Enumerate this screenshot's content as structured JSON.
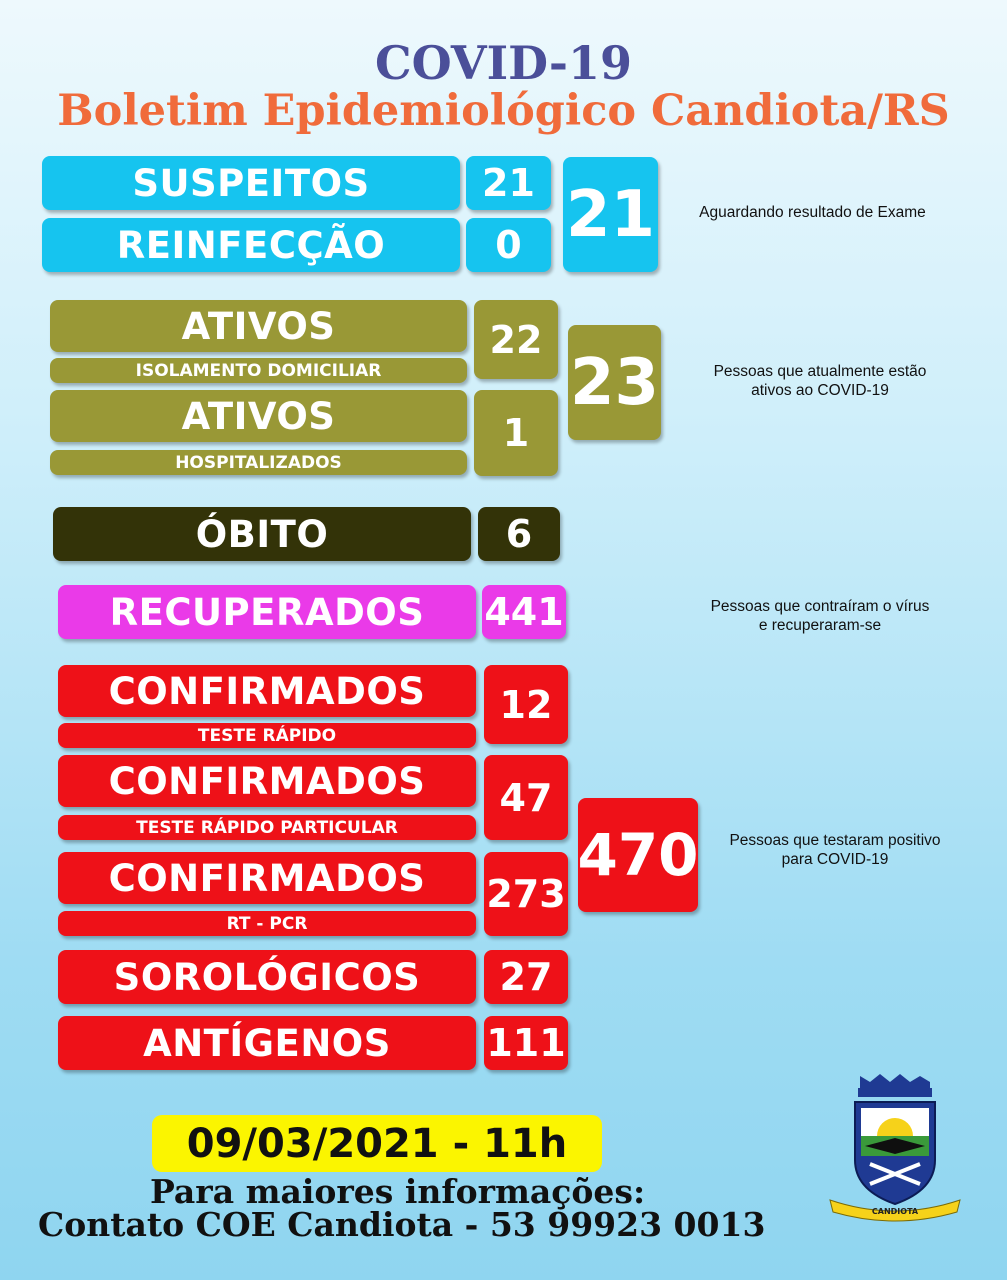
{
  "header": {
    "title": "COVID-19",
    "subtitle": "Boletim Epidemiológico Candiota/RS"
  },
  "colors": {
    "title": "#4b4f99",
    "subtitle": "#f06b3b",
    "cyan": "#16c4ef",
    "olive": "#999836",
    "dark": "#333308",
    "magenta": "#ea3ae8",
    "red": "#ee1118",
    "date_bg": "#fbf500"
  },
  "suspeitos": {
    "label": "SUSPEITOS",
    "value": "21",
    "reinfeccao_label": "REINFECÇÃO",
    "reinfeccao_value": "0",
    "total": "21",
    "note": "Aguardando resultado de Exame"
  },
  "ativos": {
    "label_1": "ATIVOS",
    "sub_1": "ISOLAMENTO DOMICILIAR",
    "value_1": "22",
    "label_2": "ATIVOS",
    "sub_2": "HOSPITALIZADOS",
    "value_2": "1",
    "total": "23",
    "note_1": "Pessoas que atualmente estão",
    "note_2": "ativos ao COVID-19"
  },
  "obito": {
    "label": "ÓBITO",
    "value": "6"
  },
  "recuperados": {
    "label": "RECUPERADOS",
    "value": "441",
    "note_1": "Pessoas que contraíram o vírus",
    "note_2": "e recuperaram-se"
  },
  "confirmados": {
    "rows": [
      {
        "label": "CONFIRMADOS",
        "sub": "TESTE RÁPIDO",
        "value": "12"
      },
      {
        "label": "CONFIRMADOS",
        "sub": "TESTE RÁPIDO PARTICULAR",
        "value": "47"
      },
      {
        "label": "CONFIRMADOS",
        "sub": "RT - PCR",
        "value": "273"
      }
    ],
    "total": "470",
    "note_1": "Pessoas que testaram positivo",
    "note_2": "para COVID-19"
  },
  "sorologicos": {
    "label": "SOROLÓGICOS",
    "value": "27"
  },
  "antigenos": {
    "label": "ANTÍGENOS",
    "value": "111"
  },
  "footer": {
    "date": "09/03/2021 - 11h",
    "info_1": "Para maiores informações:",
    "info_2": "Contato COE Candiota - 53 99923 0013",
    "crest_text": "CANDIOTA",
    "crest_icon": "municipal-crest-icon"
  }
}
